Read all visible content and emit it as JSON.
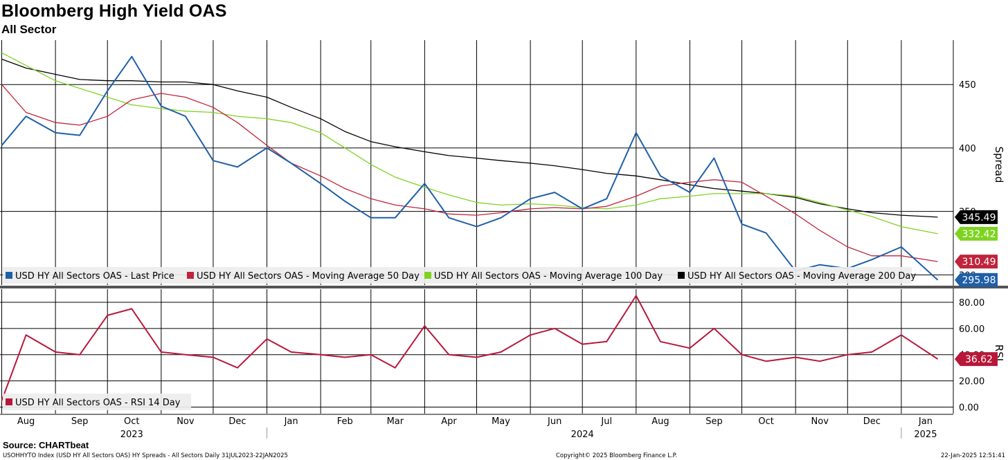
{
  "header": {
    "title": "Bloomberg High Yield OAS",
    "subtitle": "All Sector"
  },
  "footer": {
    "source": "Source: CHARTbeat",
    "index_info": "USOHHYTO Index (USD HY All Sectors OAS) HY Spreads - All Sectors  Daily 31JUL2023-22JAN2025",
    "copyright": "Copyright© 2025 Bloomberg Finance L.P.",
    "timestamp": "22-Jan-2025 12:51:41"
  },
  "colors": {
    "last_price": "#1f5fa8",
    "ma50": "#c0233a",
    "ma100": "#7ed321",
    "ma200": "#000000",
    "rsi": "#b8173a",
    "grid": "#000000"
  },
  "chart_data": [
    {
      "type": "line",
      "title": "Bloomberg High Yield OAS",
      "ylabel": "Spread",
      "ylim": [
        292,
        485
      ],
      "yticks": [
        450,
        400,
        350,
        300
      ],
      "ytick_labels": [
        "450",
        "400",
        "350",
        "300"
      ],
      "x": [
        "2023-08-01",
        "2023-08-15",
        "2023-09-01",
        "2023-09-15",
        "2023-10-01",
        "2023-10-15",
        "2023-11-01",
        "2023-11-15",
        "2023-12-01",
        "2023-12-15",
        "2024-01-01",
        "2024-01-15",
        "2024-02-01",
        "2024-02-15",
        "2024-03-01",
        "2024-03-15",
        "2024-04-01",
        "2024-04-15",
        "2024-05-01",
        "2024-05-15",
        "2024-06-01",
        "2024-06-15",
        "2024-07-01",
        "2024-07-15",
        "2024-08-01",
        "2024-08-15",
        "2024-09-01",
        "2024-09-15",
        "2024-10-01",
        "2024-10-15",
        "2024-11-01",
        "2024-11-15",
        "2024-12-01",
        "2024-12-15",
        "2025-01-01",
        "2025-01-22"
      ],
      "xlim": [
        "2023-07-31",
        "2025-01-31"
      ],
      "month_labels": [
        "Aug",
        "Sep",
        "Oct",
        "Nov",
        "Dec",
        "Jan",
        "Feb",
        "Mar",
        "Apr",
        "May",
        "Jun",
        "Jul",
        "Aug",
        "Sep",
        "Oct",
        "Nov",
        "Dec",
        "Jan"
      ],
      "month_dates": [
        "2023-08-15",
        "2023-09-15",
        "2023-10-15",
        "2023-11-15",
        "2023-12-15",
        "2024-01-15",
        "2024-02-15",
        "2024-03-15",
        "2024-04-15",
        "2024-05-15",
        "2024-06-15",
        "2024-07-15",
        "2024-08-15",
        "2024-09-15",
        "2024-10-15",
        "2024-11-15",
        "2024-12-15",
        "2025-01-15"
      ],
      "year_labels": [
        "2023",
        "2024",
        "2025"
      ],
      "year_dates": [
        "2023-10-15",
        "2024-07-01",
        "2025-01-15"
      ],
      "series": [
        {
          "name": "USD HY All Sectors OAS - Last Price",
          "color_key": "last_price",
          "values": [
            402,
            425,
            412,
            410,
            445,
            472,
            433,
            425,
            390,
            385,
            400,
            388,
            372,
            358,
            345,
            345,
            372,
            345,
            338,
            345,
            360,
            365,
            352,
            360,
            412,
            378,
            365,
            392,
            340,
            333,
            303,
            308,
            305,
            312,
            322,
            296
          ]
        },
        {
          "name": "USD HY All Sectors OAS - Moving Average 50 Day",
          "color_key": "ma50",
          "values": [
            450,
            428,
            420,
            418,
            425,
            438,
            443,
            440,
            432,
            420,
            402,
            388,
            378,
            368,
            360,
            355,
            352,
            348,
            347,
            349,
            352,
            353,
            352,
            354,
            362,
            370,
            373,
            375,
            373,
            362,
            348,
            335,
            322,
            315,
            315,
            310.49
          ]
        },
        {
          "name": "USD HY All Sectors OAS - Moving Average 100 Day",
          "color_key": "ma100",
          "values": [
            475,
            465,
            453,
            447,
            440,
            434,
            431,
            429,
            428,
            425,
            423,
            420,
            412,
            400,
            387,
            377,
            369,
            363,
            357,
            355,
            356,
            355,
            353,
            352,
            355,
            360,
            362,
            364,
            364,
            364,
            362,
            357,
            351,
            346,
            338,
            332.42
          ]
        },
        {
          "name": "USD HY All Sectors OAS - Moving Average 200 Day",
          "color_key": "ma200",
          "values": [
            470,
            463,
            458,
            454,
            453,
            453,
            452,
            452,
            450,
            445,
            440,
            432,
            423,
            413,
            405,
            401,
            397,
            394,
            392,
            390,
            388,
            386,
            383,
            380,
            378,
            375,
            371,
            368,
            366,
            364,
            361,
            356,
            352,
            349,
            347,
            345.49
          ]
        }
      ],
      "last_values": [
        {
          "label": "345.49",
          "value": 345.49,
          "color_key": "ma200",
          "text_color": "#ffffff"
        },
        {
          "label": "332.42",
          "value": 332.42,
          "color_key": "ma100",
          "text_color": "#000000"
        },
        {
          "label": "310.49",
          "value": 310.49,
          "color_key": "ma50",
          "text_color": "#ffffff"
        },
        {
          "label": "295.98",
          "value": 295.98,
          "color_key": "last_price",
          "text_color": "#ffffff"
        }
      ]
    },
    {
      "type": "line",
      "title": "RSI",
      "ylabel": "RSI",
      "ylim": [
        -5,
        90
      ],
      "yticks": [
        80,
        60,
        40,
        20,
        0
      ],
      "ytick_labels": [
        "80.00",
        "60.00",
        "40.00",
        "20.00",
        "0.00"
      ],
      "x": [
        "2023-08-01",
        "2023-08-15",
        "2023-09-01",
        "2023-09-15",
        "2023-10-01",
        "2023-10-15",
        "2023-11-01",
        "2023-11-15",
        "2023-12-01",
        "2023-12-15",
        "2024-01-01",
        "2024-01-15",
        "2024-02-01",
        "2024-02-15",
        "2024-03-01",
        "2024-03-15",
        "2024-04-01",
        "2024-04-15",
        "2024-05-01",
        "2024-05-15",
        "2024-06-01",
        "2024-06-15",
        "2024-07-01",
        "2024-07-15",
        "2024-08-01",
        "2024-08-15",
        "2024-09-01",
        "2024-09-15",
        "2024-10-01",
        "2024-10-15",
        "2024-11-01",
        "2024-11-15",
        "2024-12-01",
        "2024-12-15",
        "2025-01-01",
        "2025-01-22"
      ],
      "series": [
        {
          "name": "USD HY All Sectors OAS - RSI 14 Day",
          "color_key": "rsi",
          "values": [
            5,
            55,
            42,
            40,
            70,
            75,
            42,
            40,
            38,
            30,
            52,
            42,
            40,
            38,
            40,
            30,
            62,
            40,
            38,
            42,
            55,
            60,
            48,
            50,
            85,
            50,
            45,
            60,
            40,
            35,
            38,
            35,
            40,
            42,
            55,
            36.62
          ]
        }
      ],
      "last_values": [
        {
          "label": "36.62",
          "value": 36.62,
          "color_key": "rsi",
          "text_color": "#ffffff"
        }
      ]
    }
  ]
}
